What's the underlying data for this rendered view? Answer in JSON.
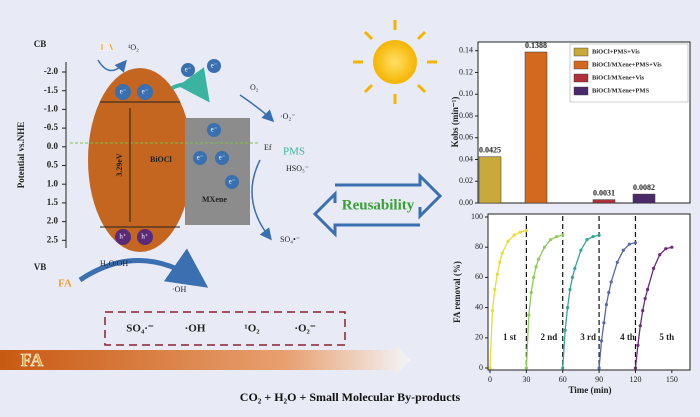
{
  "diagram": {
    "cb_label": "CB",
    "vb_label": "VB",
    "potential_axis_label": "Potential vs.NHE",
    "potential_ticks": [
      "-2.0",
      "-1.5",
      "-1.0",
      "-0.5",
      "0.0",
      "0.5",
      "1.0",
      "1.5",
      "2.0",
      "2.5"
    ],
    "fa_top": "FA",
    "singlet_oxygen": "¹O₂",
    "electron": "e⁻",
    "hole": "h⁺",
    "band_gap": "3.29eV",
    "bioc_label": "BiOCl",
    "mxene_label": "MXene",
    "fermi_label": "Ef",
    "o2_label": "O₂",
    "superoxide_label": "·O₂⁻",
    "pms_label": "PMS",
    "hso5_label": "HSO₅⁻",
    "so4_label": "SO₄•⁻",
    "water_label": "H₂O/OH⁻",
    "hydroxyl_label": "·OH",
    "fa_bottom": "FA",
    "reusability": "Reusability",
    "species": [
      "SO₄·⁻",
      "·OH",
      "¹O₂",
      "·O₂⁻"
    ],
    "fa_arrow": "FA",
    "products": "CO₂ + H₂O + Small Molecular By-products"
  },
  "chart_data": [
    {
      "type": "bar",
      "ylabel": "Kobs (min⁻¹)",
      "ylim": [
        0,
        0.148
      ],
      "yticks": [
        {
          "value": 0,
          "label": "0.00"
        },
        {
          "value": 0.02,
          "label": "0.02"
        },
        {
          "value": 0.04,
          "label": "0.04"
        },
        {
          "value": 0.06,
          "label": "0.06"
        },
        {
          "value": 0.08,
          "label": "0.08"
        },
        {
          "value": 0.1,
          "label": "0.10"
        },
        {
          "value": 0.12,
          "label": "0.12"
        },
        {
          "value": 0.14,
          "label": "0.14"
        }
      ],
      "series": [
        {
          "name": "BiOCl+PMS+Vis",
          "color": "#c9a93a",
          "values": [
            0.0425
          ]
        },
        {
          "name": "BiOCl/MXene+PMS+Vis",
          "color": "#d2691e",
          "values": [
            0.1388
          ]
        },
        {
          "name": "BiOCl/MXene+Vis",
          "color": "#b0303a",
          "values": [
            0.0031
          ]
        },
        {
          "name": "BiOCl/MXene+PMS",
          "color": "#4b2a6b",
          "values": [
            0.0082
          ]
        }
      ]
    },
    {
      "type": "line",
      "xlabel": "Time (min)",
      "ylabel": "FA removal (%)",
      "xlim": [
        0,
        165
      ],
      "xticks": [
        0,
        30,
        60,
        90,
        120,
        150
      ],
      "ylim": [
        0,
        100
      ],
      "yticks": [
        0,
        20,
        40,
        60,
        80,
        100
      ],
      "cycle_dividers": [
        30,
        60,
        90,
        120
      ],
      "annotations": [
        "1 st",
        "2 nd",
        "3 rd",
        "4 th",
        "5 th"
      ],
      "series": [
        {
          "color": "#e6dc3c",
          "x": [
            0,
            2,
            4,
            6,
            8,
            10,
            15,
            20,
            25,
            30
          ],
          "values": [
            0,
            38,
            52,
            62,
            70,
            76,
            84,
            88,
            90,
            91
          ]
        },
        {
          "color": "#8fcc5a",
          "x": [
            30,
            32,
            34,
            36,
            38,
            40,
            45,
            50,
            55,
            60
          ],
          "values": [
            0,
            35,
            50,
            60,
            67,
            72,
            80,
            85,
            87,
            88
          ]
        },
        {
          "color": "#35a595",
          "x": [
            60,
            62,
            64,
            66,
            68,
            70,
            75,
            80,
            85,
            90
          ],
          "values": [
            0,
            25,
            40,
            52,
            60,
            66,
            78,
            85,
            87,
            88
          ]
        },
        {
          "color": "#5a66a8",
          "x": [
            90,
            92,
            94,
            96,
            98,
            100,
            105,
            110,
            115,
            120
          ],
          "values": [
            0,
            18,
            30,
            42,
            50,
            57,
            70,
            78,
            82,
            83
          ]
        },
        {
          "color": "#6e2a78",
          "x": [
            120,
            122,
            124,
            126,
            128,
            130,
            135,
            140,
            145,
            150
          ],
          "values": [
            0,
            15,
            28,
            38,
            46,
            52,
            66,
            75,
            79,
            80
          ]
        }
      ]
    }
  ]
}
